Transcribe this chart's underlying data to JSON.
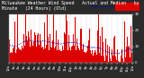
{
  "background_color": "#2a2a2a",
  "plot_bg_color": "#ffffff",
  "bar_color": "#dd0000",
  "median_color": "#0000cc",
  "n_points": 1440,
  "y_max": 30,
  "legend_actual_color": "#dd0000",
  "legend_median_color": "#0000cc",
  "title_fontsize": 3.5,
  "tick_fontsize": 2.8,
  "title_color": "#ffffff",
  "tick_color": "#ffffff",
  "grid_color": "#888888",
  "vline_color": "#888888"
}
